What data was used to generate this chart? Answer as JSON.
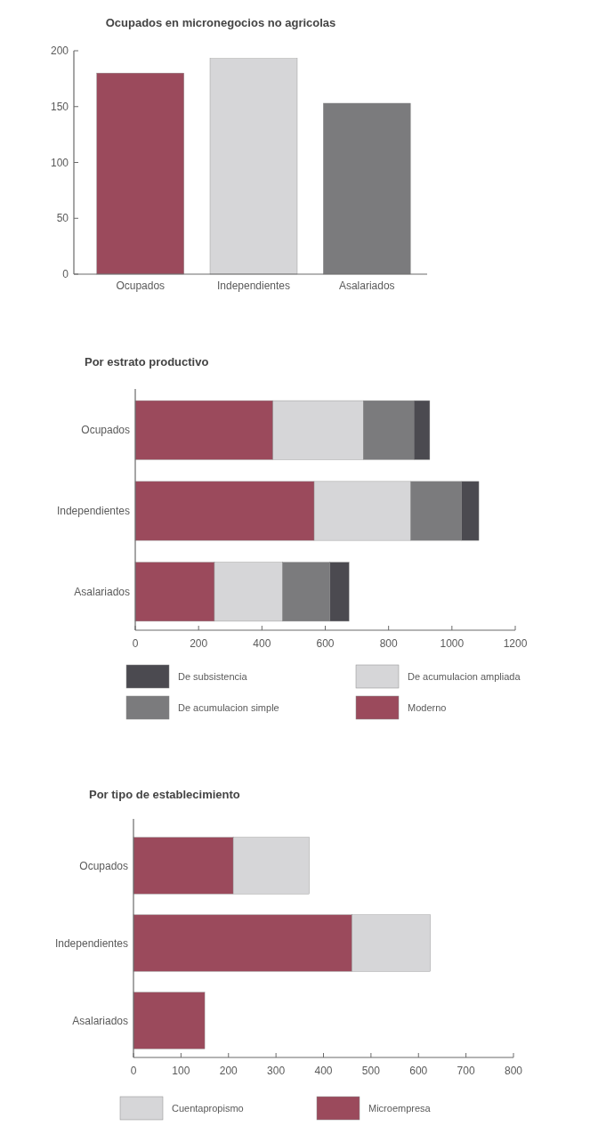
{
  "chart_data": [
    {
      "type": "bar",
      "title": "Ocupados en micronegocios no agricolas",
      "categories": [
        "Ocupados",
        "Independientes",
        "Asalariados"
      ],
      "values": [
        180,
        193,
        153
      ],
      "colors": [
        "#9b4a5c",
        "#d6d6d8",
        "#7b7b7d"
      ],
      "ylim": [
        0,
        200
      ],
      "yticks": [
        0,
        50,
        100,
        150,
        200
      ]
    },
    {
      "type": "bar",
      "title": "Por estrato productivo",
      "orientation": "horizontal",
      "stacked": true,
      "categories": [
        "Ocupados",
        "Independientes",
        "Asalariados"
      ],
      "series": [
        {
          "name": "Moderno",
          "color": "#9b4a5c",
          "values": [
            435,
            565,
            250
          ]
        },
        {
          "name": "De acumulacion ampliada",
          "color": "#d6d6d8",
          "values": [
            285,
            305,
            215
          ]
        },
        {
          "name": "De acumulacion simple",
          "color": "#7b7b7d",
          "values": [
            160,
            160,
            150
          ]
        },
        {
          "name": "De subsistencia",
          "color": "#4b4a50",
          "values": [
            50,
            55,
            60
          ]
        }
      ],
      "xlim": [
        0,
        1200
      ],
      "xticks": [
        0,
        200,
        400,
        600,
        800,
        1000,
        1200
      ],
      "legend": "bottom"
    },
    {
      "type": "bar",
      "title": "Por tipo de establecimiento",
      "orientation": "horizontal",
      "stacked": true,
      "categories": [
        "Ocupados",
        "Independientes",
        "Asalariados"
      ],
      "series": [
        {
          "name": "Microempresa",
          "color": "#9b4a5c",
          "values": [
            210,
            460,
            150
          ]
        },
        {
          "name": "Cuentapropismo",
          "color": "#d6d6d8",
          "values": [
            160,
            165,
            null
          ]
        }
      ],
      "xlim": [
        0,
        800
      ],
      "xticks": [
        0,
        100,
        200,
        300,
        400,
        500,
        600,
        700,
        800
      ],
      "legend": "bottom"
    }
  ]
}
